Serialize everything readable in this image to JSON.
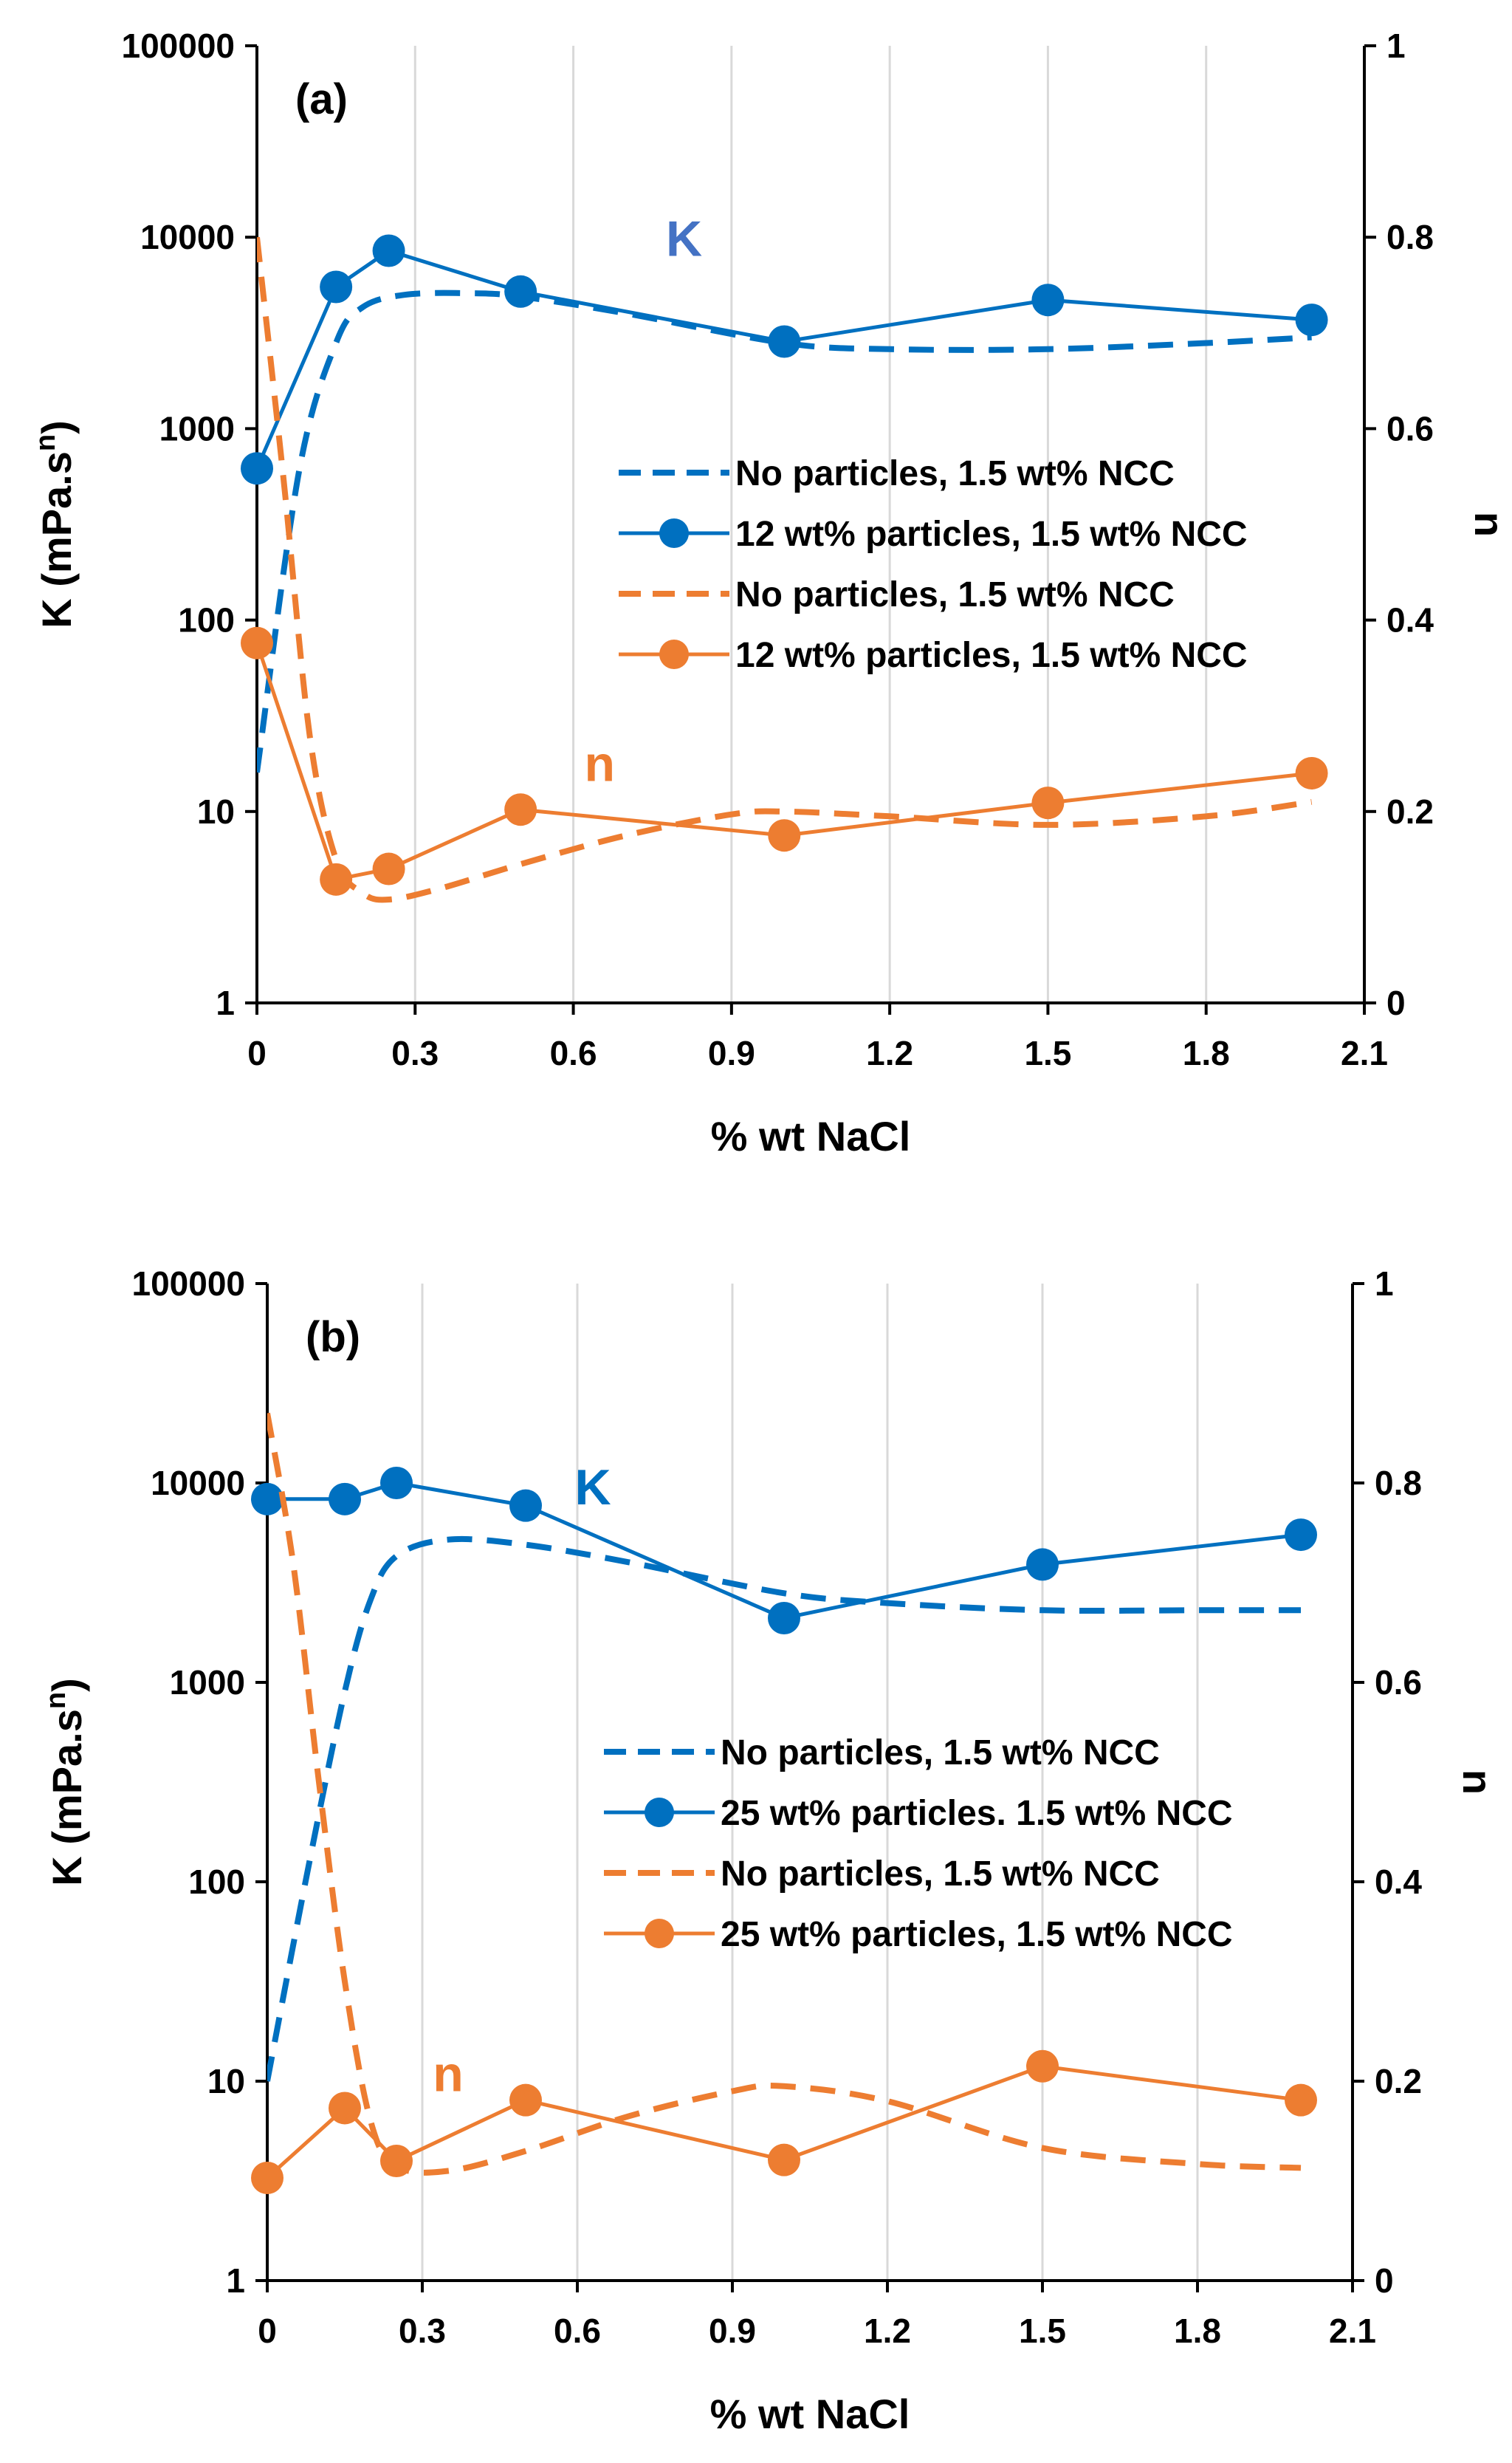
{
  "chart_data": [
    {
      "type": "line",
      "panel_label": "(a)",
      "xlabel": "% wt NaCl",
      "ylabel_left": "K (mPa.s",
      "ylabel_left_sup": "n",
      "ylabel_left_close": ")",
      "ylabel_right": "n",
      "xlim": [
        0,
        2.1
      ],
      "x_ticks": [
        "0",
        "0.3",
        "0.6",
        "0.9",
        "1.2",
        "1.5",
        "1.8",
        "2.1"
      ],
      "y_left_scale": "log",
      "y_left_lim": [
        1,
        100000
      ],
      "y_left_ticks": [
        "1",
        "10",
        "100",
        "1000",
        "10000",
        "100000"
      ],
      "y_right_lim": [
        0,
        1
      ],
      "y_right_ticks": [
        "0",
        "0.2",
        "0.4",
        "0.6",
        "0.8",
        "1"
      ],
      "grid": "vertical",
      "legend_position": "center-right",
      "annotations": [
        {
          "text": "K",
          "x": 0.81,
          "y": 8000,
          "axis": "left",
          "color": "#4472C4"
        },
        {
          "text": "n",
          "x": 0.65,
          "y": 0.232,
          "axis": "right",
          "color": "#ED7D31"
        }
      ],
      "series": [
        {
          "name": "No particles, 1.5 wt% NCC",
          "axis": "left",
          "style": "dashed",
          "color": "#0070C0",
          "x": [
            0,
            0.08,
            0.15,
            0.2,
            0.28,
            0.4,
            0.5,
            0.7,
            1.0,
            1.2,
            1.5,
            1.8,
            2.0
          ],
          "y": [
            16,
            600,
            2800,
            4300,
            5000,
            5100,
            4900,
            4000,
            2800,
            2600,
            2600,
            2800,
            3000
          ]
        },
        {
          "name": "12 wt% particles, 1.5 wt% NCC",
          "axis": "left",
          "style": "solid-markers",
          "color": "#0070C0",
          "x": [
            0,
            0.15,
            0.25,
            0.5,
            1.0,
            1.5,
            2.0
          ],
          "y": [
            620,
            5500,
            8500,
            5200,
            2850,
            4700,
            3700
          ]
        },
        {
          "name": "No particles, 1.5 wt% NCC",
          "axis": "right",
          "style": "dashed",
          "color": "#ED7D31",
          "x": [
            0,
            0.05,
            0.1,
            0.15,
            0.2,
            0.25,
            0.35,
            0.5,
            0.7,
            0.9,
            1.0,
            1.2,
            1.5,
            1.8,
            2.0
          ],
          "y": [
            0.8,
            0.55,
            0.28,
            0.15,
            0.115,
            0.108,
            0.12,
            0.145,
            0.175,
            0.197,
            0.2,
            0.195,
            0.186,
            0.195,
            0.21
          ]
        },
        {
          "name": "12 wt% particles, 1.5 wt% NCC",
          "axis": "right",
          "style": "solid-markers",
          "color": "#ED7D31",
          "x": [
            0,
            0.15,
            0.25,
            0.5,
            1.0,
            1.5,
            2.0
          ],
          "y": [
            0.376,
            0.129,
            0.14,
            0.202,
            0.175,
            0.209,
            0.24
          ]
        }
      ]
    },
    {
      "type": "line",
      "panel_label": "(b)",
      "xlabel": "% wt NaCl",
      "ylabel_left": "K (mPa.s",
      "ylabel_left_sup": "n",
      "ylabel_left_close": ")",
      "ylabel_right": "n",
      "xlim": [
        0,
        2.1
      ],
      "x_ticks": [
        "0",
        "0.3",
        "0.6",
        "0.9",
        "1.2",
        "1.5",
        "1.8",
        "2.1"
      ],
      "y_left_scale": "log",
      "y_left_lim": [
        1,
        100000
      ],
      "y_left_ticks": [
        "1",
        "10",
        "100",
        "1000",
        "10000",
        "100000"
      ],
      "y_right_lim": [
        0,
        1
      ],
      "y_right_ticks": [
        "0",
        "0.2",
        "0.4",
        "0.6",
        "0.8",
        "1"
      ],
      "grid": "vertical",
      "legend_position": "center-right",
      "annotations": [
        {
          "text": "K",
          "x": 0.63,
          "y": 7800,
          "axis": "left",
          "color": "#0070C0"
        },
        {
          "text": "n",
          "x": 0.35,
          "y": 0.19,
          "axis": "right",
          "color": "#ED7D31"
        }
      ],
      "series": [
        {
          "name": "No particles, 1.5 wt% NCC",
          "axis": "left",
          "style": "dashed",
          "color": "#0070C0",
          "x": [
            0,
            0.08,
            0.15,
            0.2,
            0.25,
            0.35,
            0.5,
            0.7,
            1.0,
            1.2,
            1.5,
            1.8,
            2.0
          ],
          "y": [
            10,
            120,
            900,
            2600,
            4300,
            5200,
            4900,
            4000,
            2800,
            2500,
            2300,
            2300,
            2300
          ]
        },
        {
          "name": "25 wt% particles. 1.5 wt% NCC",
          "axis": "left",
          "style": "solid-markers",
          "color": "#0070C0",
          "x": [
            0,
            0.15,
            0.25,
            0.5,
            1.0,
            1.5,
            2.0
          ],
          "y": [
            8300,
            8300,
            10000,
            7700,
            2100,
            3900,
            5500
          ]
        },
        {
          "name": "No particles, 1.5 wt% NCC",
          "axis": "right",
          "style": "dashed",
          "color": "#ED7D31",
          "x": [
            0,
            0.05,
            0.1,
            0.15,
            0.2,
            0.25,
            0.35,
            0.5,
            0.7,
            0.9,
            1.0,
            1.2,
            1.5,
            1.8,
            2.0
          ],
          "y": [
            0.87,
            0.72,
            0.5,
            0.3,
            0.16,
            0.115,
            0.11,
            0.13,
            0.165,
            0.19,
            0.195,
            0.18,
            0.133,
            0.117,
            0.113
          ]
        },
        {
          "name": "25 wt% particles, 1.5 wt% NCC",
          "axis": "right",
          "style": "solid-markers",
          "color": "#ED7D31",
          "x": [
            0,
            0.15,
            0.25,
            0.5,
            1.0,
            1.5,
            2.0
          ],
          "y": [
            0.103,
            0.173,
            0.12,
            0.181,
            0.121,
            0.215,
            0.181
          ]
        }
      ]
    }
  ]
}
